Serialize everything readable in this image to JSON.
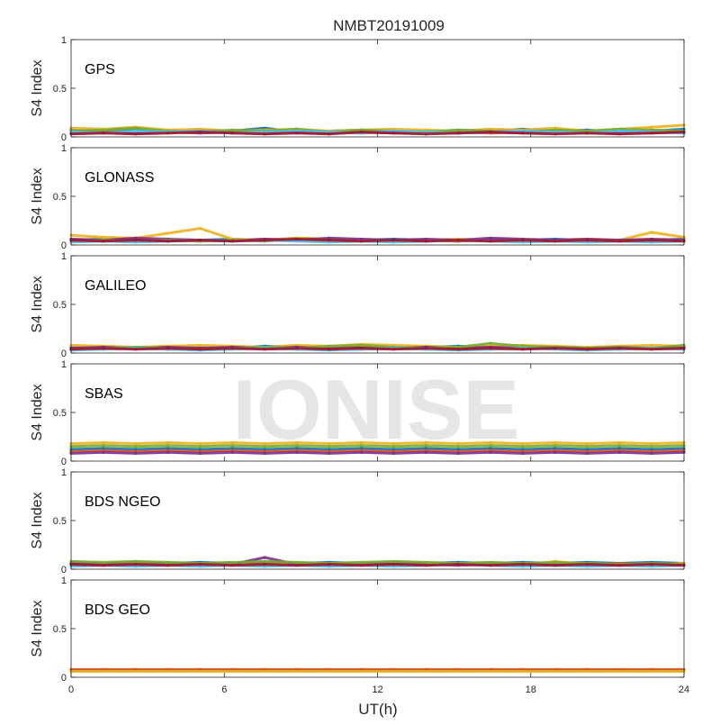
{
  "figure": {
    "title": "NMBT20191009",
    "watermark": "IONISE"
  },
  "chart_data": {
    "type": "scatter",
    "title": "NMBT20191009",
    "xlabel": "UT(h)",
    "ylabel": "S4 Index",
    "xlim": [
      0,
      24
    ],
    "ylim": [
      0,
      1
    ],
    "xticks": [
      0,
      6,
      12,
      18,
      24
    ],
    "yticks": [
      0,
      0.5,
      1
    ],
    "grid": false,
    "colors": [
      "#0072BD",
      "#D95319",
      "#EDB120",
      "#7E2F8E",
      "#77AC30",
      "#4DBEEE",
      "#A2142F"
    ],
    "panels": [
      {
        "name": "GPS",
        "series": [
          {
            "values": [
              0.07,
              0.06,
              0.08,
              0.05,
              0.07,
              0.06,
              0.09,
              0.05,
              0.06,
              0.07,
              0.06,
              0.05,
              0.07,
              0.06,
              0.08,
              0.06,
              0.07,
              0.05,
              0.06,
              0.08
            ]
          },
          {
            "values": [
              0.05,
              0.06,
              0.04,
              0.05,
              0.06,
              0.05,
              0.04,
              0.06,
              0.05,
              0.04,
              0.05,
              0.06,
              0.05,
              0.04,
              0.05,
              0.06,
              0.05,
              0.04,
              0.05,
              0.06
            ]
          },
          {
            "values": [
              0.09,
              0.08,
              0.1,
              0.07,
              0.08,
              0.06,
              0.07,
              0.08,
              0.06,
              0.07,
              0.08,
              0.07,
              0.06,
              0.08,
              0.07,
              0.09,
              0.06,
              0.08,
              0.1,
              0.12
            ]
          },
          {
            "values": [
              0.04,
              0.05,
              0.04,
              0.05,
              0.04,
              0.05,
              0.04,
              0.05,
              0.04,
              0.05,
              0.04,
              0.05,
              0.04,
              0.05,
              0.04,
              0.05,
              0.04,
              0.05,
              0.04,
              0.05
            ]
          },
          {
            "values": [
              0.06,
              0.07,
              0.09,
              0.06,
              0.05,
              0.07,
              0.06,
              0.08,
              0.05,
              0.07,
              0.06,
              0.05,
              0.07,
              0.06,
              0.05,
              0.07,
              0.06,
              0.08,
              0.07,
              0.06
            ]
          },
          {
            "values": [
              0.05,
              0.04,
              0.06,
              0.05,
              0.06,
              0.04,
              0.05,
              0.06,
              0.05,
              0.04,
              0.06,
              0.05,
              0.04,
              0.05,
              0.06,
              0.05,
              0.04,
              0.06,
              0.05,
              0.04
            ]
          },
          {
            "values": [
              0.03,
              0.04,
              0.03,
              0.04,
              0.05,
              0.04,
              0.03,
              0.04,
              0.03,
              0.05,
              0.04,
              0.03,
              0.04,
              0.05,
              0.04,
              0.03,
              0.04,
              0.03,
              0.04,
              0.05
            ]
          }
        ]
      },
      {
        "name": "GLONASS",
        "series": [
          {
            "values": [
              0.05,
              0.06,
              0.05,
              0.04,
              0.05,
              0.06,
              0.05,
              0.07,
              0.06,
              0.05,
              0.06,
              0.05,
              0.04,
              0.06,
              0.05,
              0.06,
              0.05,
              0.04,
              0.05,
              0.06
            ]
          },
          {
            "values": [
              0.04,
              0.05,
              0.04,
              0.05,
              0.04,
              0.05,
              0.06,
              0.05,
              0.04,
              0.05,
              0.04,
              0.05,
              0.04,
              0.05,
              0.04,
              0.05,
              0.04,
              0.05,
              0.04,
              0.05
            ]
          },
          {
            "values": [
              0.1,
              0.08,
              0.07,
              0.12,
              0.17,
              0.06,
              0.05,
              0.07,
              0.06,
              0.05,
              0.04,
              0.05,
              0.06,
              0.05,
              0.04,
              0.05,
              0.06,
              0.05,
              0.13,
              0.08
            ]
          },
          {
            "values": [
              0.06,
              0.05,
              0.07,
              0.06,
              0.05,
              0.04,
              0.06,
              0.05,
              0.07,
              0.06,
              0.05,
              0.06,
              0.05,
              0.07,
              0.06,
              0.05,
              0.06,
              0.05,
              0.06,
              0.05
            ]
          },
          {
            "values": [
              0.04,
              0.05,
              0.04,
              0.05,
              0.04,
              0.05,
              0.04,
              0.06,
              0.05,
              0.04,
              0.05,
              0.04,
              0.05,
              0.04,
              0.05,
              0.04,
              0.05,
              0.04,
              0.05,
              0.04
            ]
          },
          {
            "values": [
              0.03,
              0.04,
              0.03,
              0.04,
              0.05,
              0.04,
              0.05,
              0.04,
              0.03,
              0.04,
              0.03,
              0.04,
              0.05,
              0.04,
              0.03,
              0.04,
              0.03,
              0.04,
              0.03,
              0.04
            ]
          },
          {
            "values": [
              0.05,
              0.04,
              0.05,
              0.04,
              0.05,
              0.04,
              0.05,
              0.06,
              0.05,
              0.04,
              0.05,
              0.04,
              0.05,
              0.04,
              0.05,
              0.04,
              0.05,
              0.04,
              0.05,
              0.04
            ]
          }
        ]
      },
      {
        "name": "GALILEO",
        "series": [
          {
            "values": [
              0.06,
              0.05,
              0.06,
              0.05,
              0.06,
              0.05,
              0.07,
              0.06,
              0.05,
              0.06,
              0.05,
              0.06,
              0.07,
              0.06,
              0.05,
              0.06,
              0.05,
              0.06,
              0.05,
              0.06
            ]
          },
          {
            "values": [
              0.05,
              0.04,
              0.05,
              0.04,
              0.05,
              0.06,
              0.05,
              0.04,
              0.05,
              0.04,
              0.05,
              0.04,
              0.05,
              0.04,
              0.05,
              0.06,
              0.05,
              0.04,
              0.05,
              0.04
            ]
          },
          {
            "values": [
              0.08,
              0.07,
              0.06,
              0.07,
              0.08,
              0.07,
              0.06,
              0.08,
              0.07,
              0.09,
              0.08,
              0.07,
              0.06,
              0.07,
              0.08,
              0.07,
              0.06,
              0.07,
              0.08,
              0.07
            ]
          },
          {
            "values": [
              0.05,
              0.06,
              0.05,
              0.06,
              0.05,
              0.06,
              0.05,
              0.06,
              0.05,
              0.06,
              0.05,
              0.06,
              0.05,
              0.06,
              0.05,
              0.06,
              0.05,
              0.06,
              0.05,
              0.06
            ]
          },
          {
            "values": [
              0.04,
              0.05,
              0.06,
              0.05,
              0.04,
              0.05,
              0.06,
              0.05,
              0.07,
              0.08,
              0.06,
              0.05,
              0.06,
              0.1,
              0.07,
              0.06,
              0.05,
              0.06,
              0.05,
              0.08
            ]
          },
          {
            "values": [
              0.03,
              0.04,
              0.05,
              0.04,
              0.03,
              0.04,
              0.05,
              0.04,
              0.03,
              0.04,
              0.05,
              0.04,
              0.03,
              0.04,
              0.05,
              0.04,
              0.03,
              0.04,
              0.05,
              0.04
            ]
          },
          {
            "values": [
              0.04,
              0.05,
              0.04,
              0.05,
              0.04,
              0.05,
              0.04,
              0.05,
              0.04,
              0.05,
              0.04,
              0.05,
              0.04,
              0.05,
              0.04,
              0.05,
              0.04,
              0.05,
              0.04,
              0.05
            ]
          }
        ]
      },
      {
        "name": "SBAS",
        "series": [
          {
            "values": [
              0.12,
              0.13,
              0.12,
              0.13,
              0.12,
              0.13,
              0.12,
              0.13,
              0.12,
              0.13,
              0.12,
              0.13,
              0.12,
              0.13,
              0.12,
              0.13,
              0.12,
              0.13,
              0.12,
              0.13
            ]
          },
          {
            "values": [
              0.1,
              0.11,
              0.1,
              0.11,
              0.1,
              0.11,
              0.1,
              0.11,
              0.1,
              0.11,
              0.1,
              0.11,
              0.1,
              0.11,
              0.1,
              0.11,
              0.1,
              0.11,
              0.1,
              0.11
            ]
          },
          {
            "values": [
              0.18,
              0.19,
              0.18,
              0.19,
              0.18,
              0.19,
              0.18,
              0.19,
              0.18,
              0.19,
              0.18,
              0.19,
              0.18,
              0.19,
              0.18,
              0.19,
              0.18,
              0.19,
              0.18,
              0.19
            ]
          },
          {
            "values": [
              0.08,
              0.09,
              0.08,
              0.09,
              0.08,
              0.09,
              0.08,
              0.09,
              0.08,
              0.09,
              0.08,
              0.09,
              0.08,
              0.09,
              0.08,
              0.09,
              0.08,
              0.09,
              0.08,
              0.09
            ]
          },
          {
            "values": [
              0.15,
              0.16,
              0.15,
              0.16,
              0.15,
              0.16,
              0.15,
              0.16,
              0.15,
              0.16,
              0.15,
              0.16,
              0.15,
              0.16,
              0.15,
              0.16,
              0.15,
              0.16,
              0.15,
              0.16
            ]
          }
        ]
      },
      {
        "name": "BDS NGEO",
        "series": [
          {
            "values": [
              0.07,
              0.06,
              0.07,
              0.06,
              0.07,
              0.06,
              0.07,
              0.06,
              0.07,
              0.06,
              0.07,
              0.06,
              0.07,
              0.06,
              0.07,
              0.06,
              0.07,
              0.06,
              0.07,
              0.06
            ]
          },
          {
            "values": [
              0.05,
              0.06,
              0.05,
              0.06,
              0.05,
              0.06,
              0.05,
              0.06,
              0.05,
              0.06,
              0.05,
              0.06,
              0.05,
              0.06,
              0.05,
              0.06,
              0.05,
              0.06,
              0.05,
              0.06
            ]
          },
          {
            "values": [
              0.04,
              0.05,
              0.04,
              0.05,
              0.06,
              0.05,
              0.04,
              0.05,
              0.06,
              0.05,
              0.04,
              0.05,
              0.06,
              0.05,
              0.04,
              0.08,
              0.05,
              0.04,
              0.05,
              0.06
            ]
          },
          {
            "values": [
              0.06,
              0.05,
              0.04,
              0.05,
              0.06,
              0.05,
              0.12,
              0.05,
              0.04,
              0.05,
              0.06,
              0.05,
              0.04,
              0.05,
              0.06,
              0.05,
              0.04,
              0.05,
              0.06,
              0.05
            ]
          },
          {
            "values": [
              0.08,
              0.07,
              0.08,
              0.07,
              0.06,
              0.07,
              0.08,
              0.07,
              0.06,
              0.07,
              0.08,
              0.07,
              0.06,
              0.07,
              0.06,
              0.07,
              0.06,
              0.05,
              0.06,
              0.05
            ]
          },
          {
            "values": [
              0.03,
              0.04,
              0.03,
              0.04,
              0.03,
              0.04,
              0.03,
              0.04,
              0.03,
              0.04,
              0.03,
              0.04,
              0.05,
              0.04,
              0.03,
              0.04,
              0.03,
              0.04,
              0.03,
              0.04
            ]
          },
          {
            "values": [
              0.05,
              0.04,
              0.05,
              0.04,
              0.05,
              0.04,
              0.05,
              0.04,
              0.05,
              0.04,
              0.05,
              0.04,
              0.05,
              0.04,
              0.05,
              0.04,
              0.05,
              0.04,
              0.05,
              0.04
            ]
          }
        ]
      },
      {
        "name": "BDS GEO",
        "series": [
          {
            "values": [
              0.07,
              0.07,
              0.07,
              0.07,
              0.07,
              0.07,
              0.07,
              0.07,
              0.07,
              0.07,
              0.07,
              0.07,
              0.07,
              0.07,
              0.07,
              0.07,
              0.07,
              0.07,
              0.07,
              0.07
            ]
          },
          {
            "values": [
              0.08,
              0.08,
              0.08,
              0.08,
              0.08,
              0.08,
              0.08,
              0.08,
              0.08,
              0.08,
              0.08,
              0.08,
              0.08,
              0.08,
              0.08,
              0.08,
              0.08,
              0.08,
              0.08,
              0.08
            ]
          },
          {
            "values": [
              0.06,
              0.06,
              0.06,
              0.06,
              0.06,
              0.06,
              0.06,
              0.06,
              0.06,
              0.06,
              0.06,
              0.06,
              0.06,
              0.06,
              0.06,
              0.06,
              0.06,
              0.06,
              0.06,
              0.06
            ]
          }
        ]
      }
    ]
  }
}
